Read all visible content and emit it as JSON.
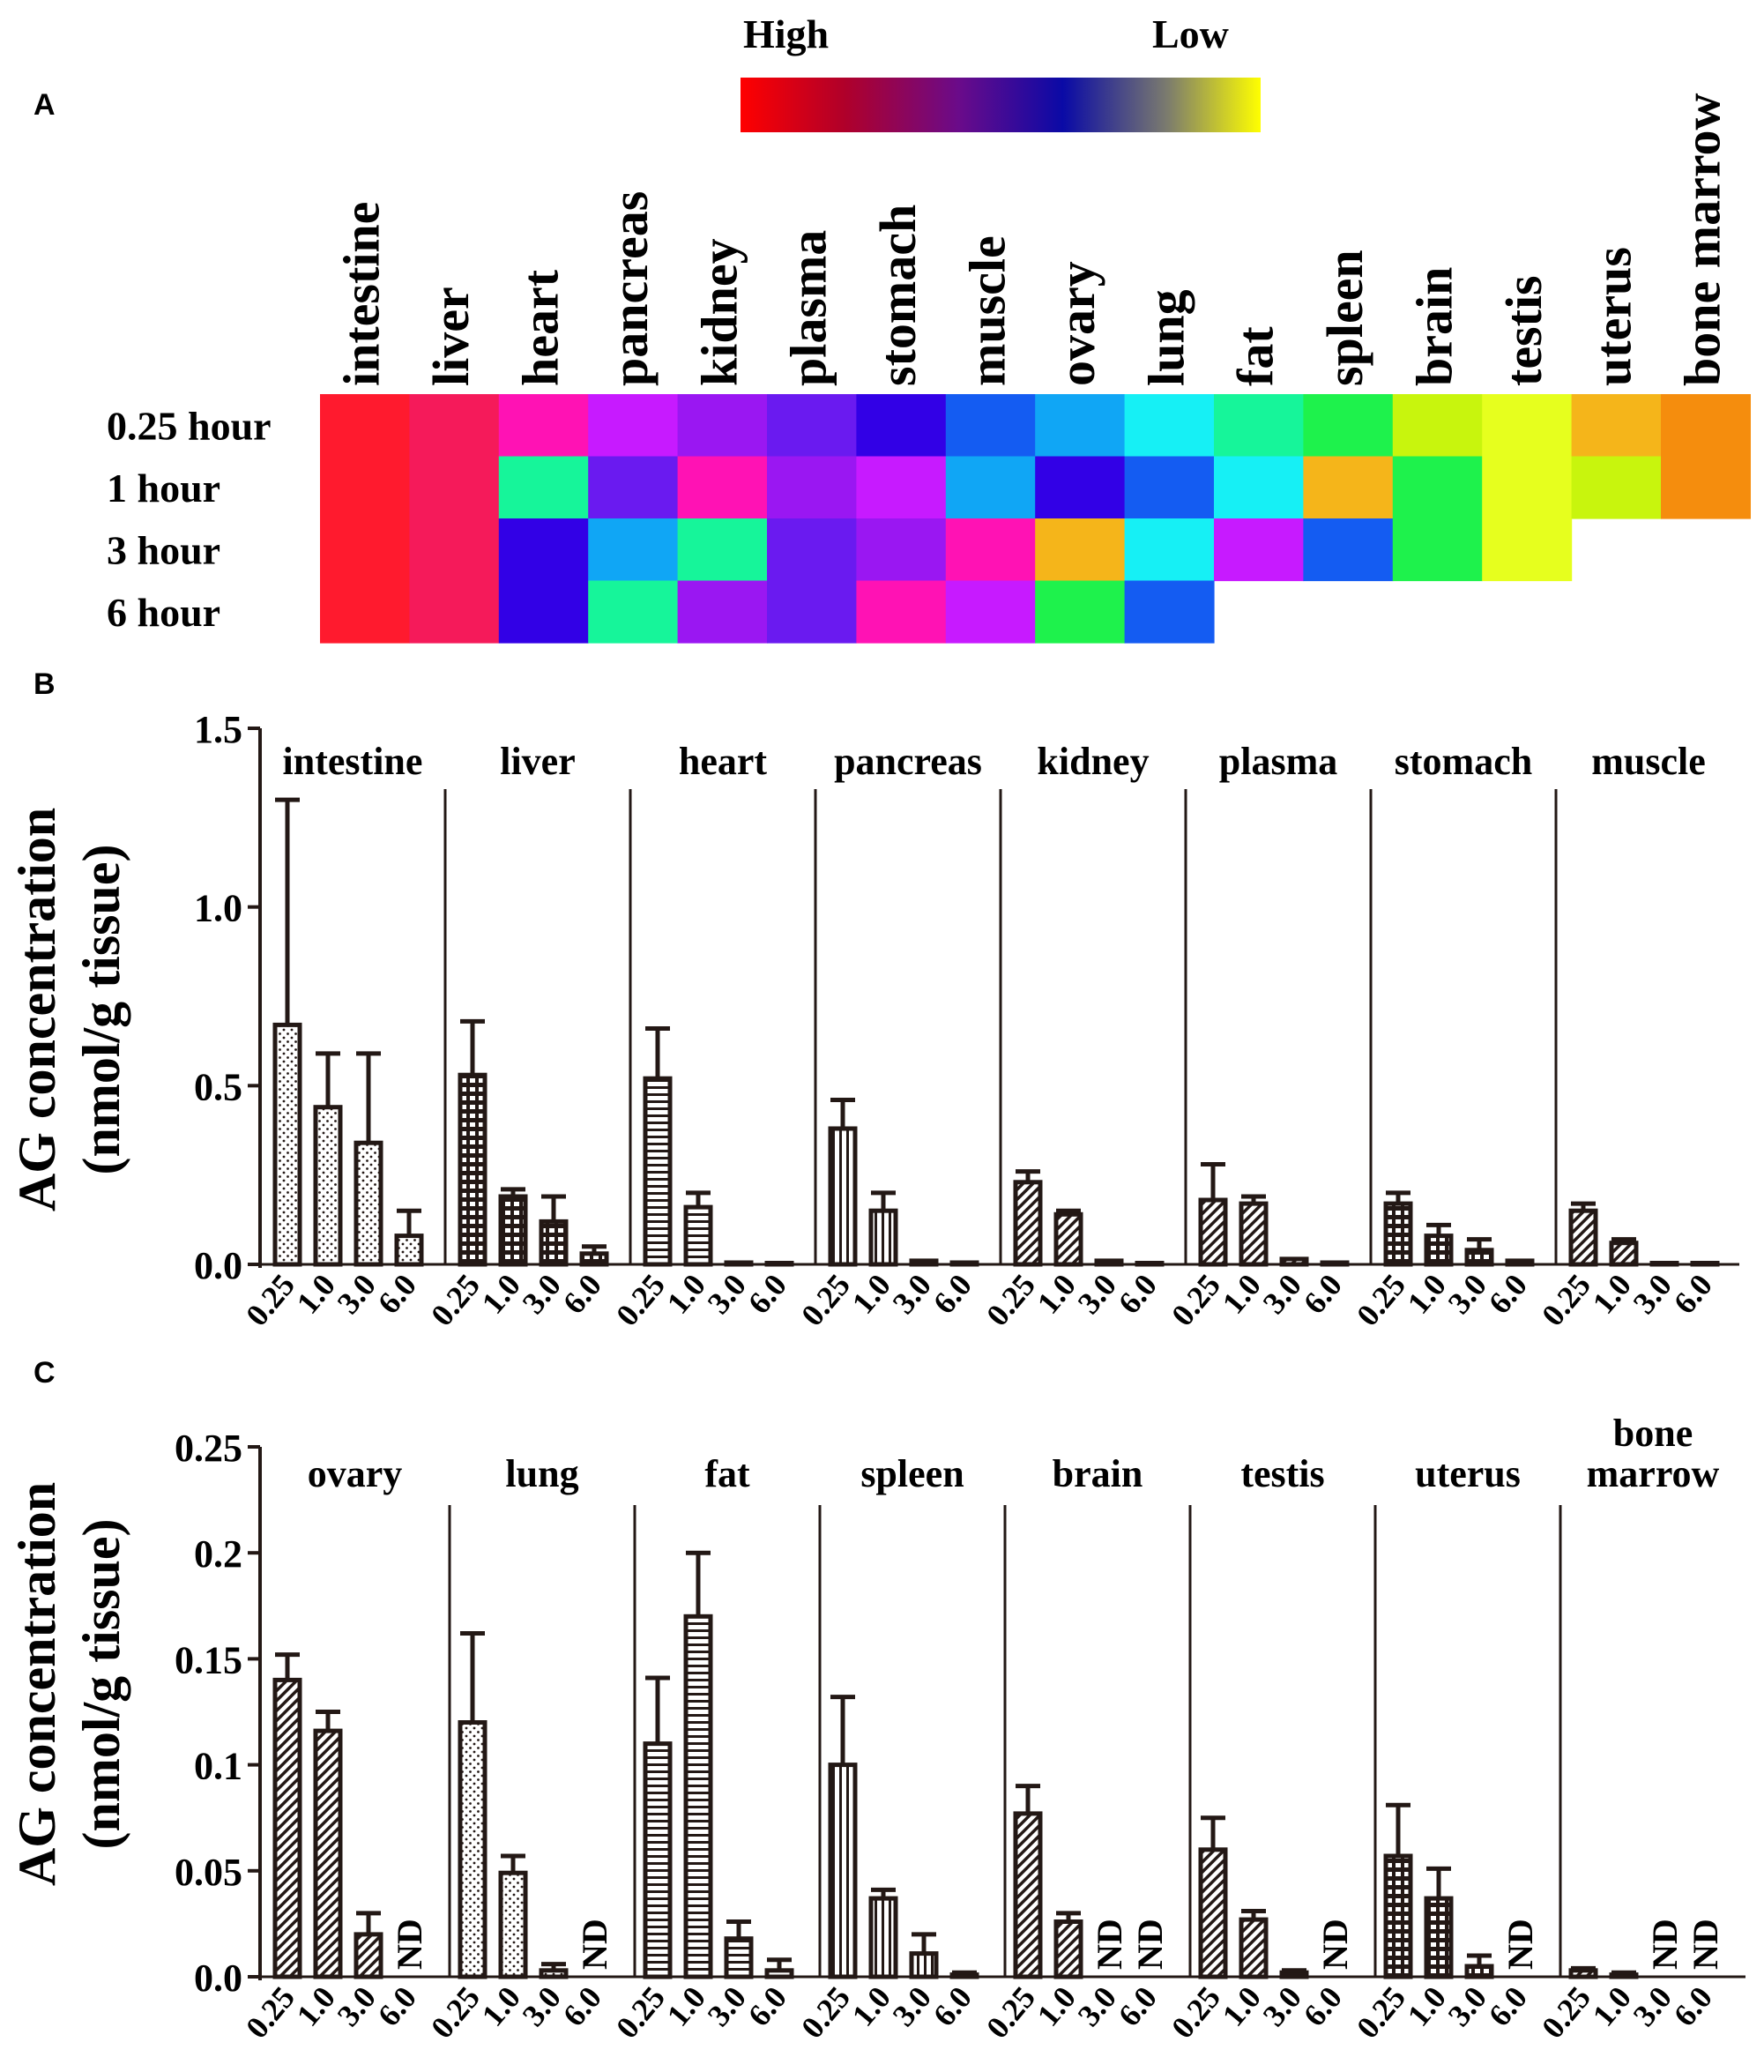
{
  "panels": {
    "a": "A",
    "b": "B",
    "c": "C"
  },
  "colors": {
    "bar_stroke": "#231815",
    "scale_red": "#ff0000",
    "scale_darkred": "#b0002a",
    "scale_purple": "#6a0b8a",
    "scale_blue": "#0a0aa6",
    "scale_gray": "#7b7b6e",
    "scale_yellow": "#ffff00",
    "heat_palette": {
      "red": "#ff1a2e",
      "crimson": "#f51a5a",
      "magenta": "#ff12b4",
      "orchid": "#c71aff",
      "violet": "#9a17f2",
      "indigo": "#6a1af0",
      "navy": "#3200e6",
      "royal": "#145cf2",
      "sky": "#10a6f5",
      "cyan": "#16f0f5",
      "mint": "#16f59a",
      "green": "#1ef24c",
      "lime": "#c8f50d",
      "yellow": "#e6ff1e",
      "amber": "#f5b51a",
      "orange": "#f58d0d"
    }
  },
  "chart_data": [
    {
      "type": "heatmap",
      "title": "",
      "legend": {
        "high_label": "High",
        "low_label": "Low",
        "placement": "top"
      },
      "columns": [
        "intestine",
        "liver",
        "heart",
        "pancreas",
        "kidney",
        "plasma",
        "stomach",
        "muscle",
        "ovary",
        "lung",
        "fat",
        "spleen",
        "brain",
        "testis",
        "uterus",
        "bone marrow"
      ],
      "rows": [
        "0.25 hour",
        "1 hour",
        "3 hour",
        "6 hour"
      ],
      "cells": [
        [
          "red",
          "crimson",
          "magenta",
          "orchid",
          "violet",
          "indigo",
          "navy",
          "royal",
          "sky",
          "cyan",
          "mint",
          "green",
          "lime",
          "yellow",
          "amber",
          "orange"
        ],
        [
          "red",
          "crimson",
          "mint",
          "indigo",
          "magenta",
          "violet",
          "orchid",
          "sky",
          "navy",
          "royal",
          "cyan",
          "amber",
          "green",
          "yellow",
          "lime",
          "orange"
        ],
        [
          "red",
          "crimson",
          "navy",
          "sky",
          "mint",
          "indigo",
          "violet",
          "magenta",
          "amber",
          "cyan",
          "orchid",
          "royal",
          "green",
          "yellow",
          null,
          null
        ],
        [
          "red",
          "crimson",
          "navy",
          "mint",
          "violet",
          "indigo",
          "magenta",
          "orchid",
          "green",
          "royal",
          null,
          null,
          null,
          null,
          null,
          null
        ]
      ]
    },
    {
      "type": "bar",
      "ylabel": "AG concentration",
      "ylabel2": "(nmol/g tissue)",
      "ylim": [
        0,
        1.5
      ],
      "yticks": [
        "0.0",
        "0.5",
        "1.0",
        "1.5"
      ],
      "ytick_values": [
        0,
        0.5,
        1.0,
        1.5
      ],
      "categories": [
        "0.25",
        "1.0",
        "3.0",
        "6.0"
      ],
      "groups": [
        {
          "name": "intestine",
          "pattern": "dots",
          "values": [
            0.67,
            0.44,
            0.34,
            0.08
          ],
          "errors": [
            0.63,
            0.15,
            0.25,
            0.07
          ]
        },
        {
          "name": "liver",
          "pattern": "grid",
          "values": [
            0.53,
            0.19,
            0.12,
            0.03
          ],
          "errors": [
            0.15,
            0.02,
            0.07,
            0.02
          ]
        },
        {
          "name": "heart",
          "pattern": "hlines",
          "values": [
            0.52,
            0.16,
            0.005,
            0.003
          ],
          "errors": [
            0.14,
            0.04,
            0.0,
            0.0
          ]
        },
        {
          "name": "pancreas",
          "pattern": "vlines",
          "values": [
            0.38,
            0.15,
            0.01,
            0.005
          ],
          "errors": [
            0.08,
            0.05,
            0.0,
            0.0
          ]
        },
        {
          "name": "kidney",
          "pattern": "diag",
          "values": [
            0.23,
            0.14,
            0.01,
            0.003
          ],
          "errors": [
            0.03,
            0.01,
            0.0,
            0.0
          ]
        },
        {
          "name": "plasma",
          "pattern": "diag",
          "values": [
            0.18,
            0.17,
            0.015,
            0.005
          ],
          "errors": [
            0.1,
            0.02,
            0.0,
            0.0
          ]
        },
        {
          "name": "stomach",
          "pattern": "grid",
          "values": [
            0.17,
            0.08,
            0.04,
            0.01
          ],
          "errors": [
            0.03,
            0.03,
            0.03,
            0.0
          ]
        },
        {
          "name": "muscle",
          "pattern": "diag",
          "values": [
            0.15,
            0.06,
            0.003,
            0.003
          ],
          "errors": [
            0.02,
            0.01,
            0.0,
            0.0
          ]
        }
      ]
    },
    {
      "type": "bar",
      "ylabel": "AG concentration",
      "ylabel2": "(nmol/g tissue)",
      "ylim": [
        0,
        0.25
      ],
      "yticks": [
        "0.0",
        "0.05",
        "0.1",
        "0.15",
        "0.2",
        "0.25"
      ],
      "ytick_values": [
        0,
        0.05,
        0.1,
        0.15,
        0.2,
        0.25
      ],
      "categories": [
        "0.25",
        "1.0",
        "3.0",
        "6.0"
      ],
      "nd_label": "ND",
      "groups": [
        {
          "name": "ovary",
          "pattern": "diag",
          "values": [
            0.14,
            0.116,
            0.02,
            null
          ],
          "errors": [
            0.012,
            0.009,
            0.01,
            null
          ]
        },
        {
          "name": "lung",
          "pattern": "dots",
          "values": [
            0.12,
            0.049,
            0.003,
            null
          ],
          "errors": [
            0.042,
            0.008,
            0.003,
            null
          ]
        },
        {
          "name": "fat",
          "pattern": "hlines",
          "values": [
            0.11,
            0.17,
            0.018,
            0.003
          ],
          "errors": [
            0.031,
            0.03,
            0.008,
            0.005
          ]
        },
        {
          "name": "spleen",
          "pattern": "vlines",
          "values": [
            0.1,
            0.037,
            0.011,
            0.001
          ],
          "errors": [
            0.032,
            0.004,
            0.009,
            0.001
          ]
        },
        {
          "name": "brain",
          "pattern": "diag",
          "values": [
            0.077,
            0.026,
            null,
            null
          ],
          "errors": [
            0.013,
            0.004,
            null,
            null
          ]
        },
        {
          "name": "testis",
          "pattern": "diag",
          "values": [
            0.06,
            0.027,
            0.002,
            null
          ],
          "errors": [
            0.015,
            0.004,
            0.001,
            null
          ]
        },
        {
          "name": "uterus",
          "pattern": "grid",
          "values": [
            0.057,
            0.037,
            0.005,
            null
          ],
          "errors": [
            0.024,
            0.014,
            0.005,
            null
          ]
        },
        {
          "name": "bone\nmarrow",
          "pattern": "diag",
          "values": [
            0.003,
            0.001,
            null,
            null
          ],
          "errors": [
            0.001,
            0.001,
            null,
            null
          ]
        }
      ]
    }
  ]
}
